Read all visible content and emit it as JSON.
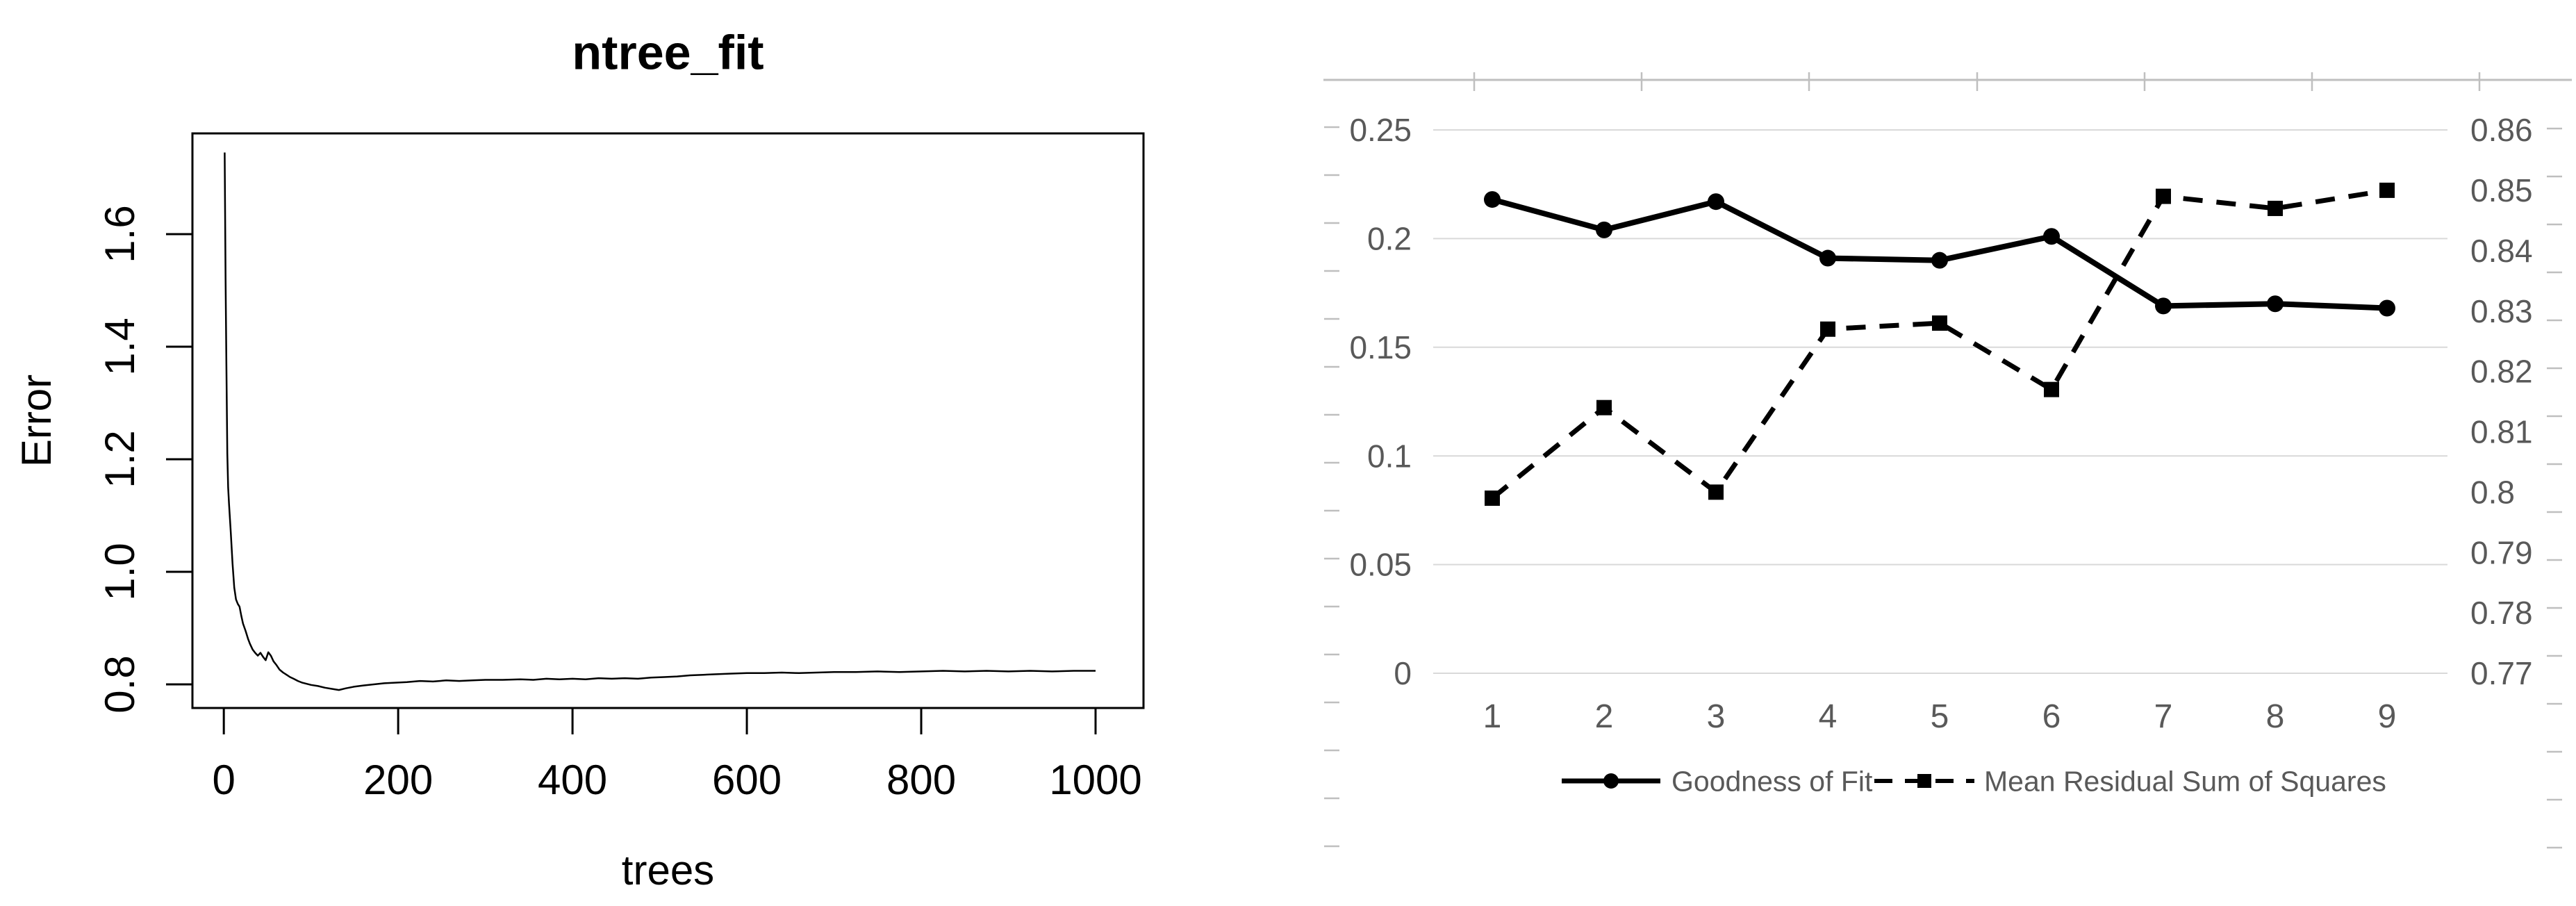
{
  "page": {
    "background": "#ffffff"
  },
  "chart_data": [
    {
      "id": "ntree-fit",
      "type": "line",
      "title": "ntree_fit",
      "xlabel": "trees",
      "ylabel": "Error",
      "x_ticks": [
        "0",
        "200",
        "400",
        "600",
        "800",
        "1000"
      ],
      "x_tick_values": [
        0,
        200,
        400,
        600,
        800,
        1000
      ],
      "y_ticks": [
        "0.8",
        "1.0",
        "1.2",
        "1.4",
        "1.6"
      ],
      "y_tick_values": [
        0.8,
        1.0,
        1.2,
        1.4,
        1.6
      ],
      "xlim": [
        -36,
        1055
      ],
      "ylim": [
        0.758,
        1.779
      ],
      "grid": false,
      "line_color": "#000000",
      "points": [
        [
          1,
          1.745
        ],
        [
          2,
          1.52
        ],
        [
          3,
          1.365
        ],
        [
          4,
          1.21
        ],
        [
          5,
          1.15
        ],
        [
          6,
          1.12
        ],
        [
          8,
          1.07
        ],
        [
          10,
          1.015
        ],
        [
          12,
          0.972
        ],
        [
          14,
          0.951
        ],
        [
          16,
          0.943
        ],
        [
          18,
          0.938
        ],
        [
          20,
          0.922
        ],
        [
          22,
          0.908
        ],
        [
          25,
          0.895
        ],
        [
          28,
          0.88
        ],
        [
          30,
          0.872
        ],
        [
          33,
          0.862
        ],
        [
          36,
          0.856
        ],
        [
          39,
          0.851
        ],
        [
          42,
          0.856
        ],
        [
          45,
          0.849
        ],
        [
          48,
          0.843
        ],
        [
          51,
          0.857
        ],
        [
          54,
          0.851
        ],
        [
          57,
          0.841
        ],
        [
          60,
          0.835
        ],
        [
          64,
          0.826
        ],
        [
          68,
          0.821
        ],
        [
          72,
          0.817
        ],
        [
          76,
          0.813
        ],
        [
          80,
          0.81
        ],
        [
          85,
          0.806
        ],
        [
          90,
          0.803
        ],
        [
          95,
          0.801
        ],
        [
          100,
          0.799
        ],
        [
          108,
          0.797
        ],
        [
          116,
          0.794
        ],
        [
          124,
          0.792
        ],
        [
          132,
          0.79
        ],
        [
          140,
          0.793
        ],
        [
          150,
          0.796
        ],
        [
          160,
          0.798
        ],
        [
          172,
          0.8
        ],
        [
          184,
          0.802
        ],
        [
          196,
          0.803
        ],
        [
          210,
          0.804
        ],
        [
          225,
          0.806
        ],
        [
          240,
          0.805
        ],
        [
          255,
          0.807
        ],
        [
          270,
          0.806
        ],
        [
          285,
          0.807
        ],
        [
          300,
          0.808
        ],
        [
          320,
          0.808
        ],
        [
          340,
          0.809
        ],
        [
          355,
          0.808
        ],
        [
          370,
          0.81
        ],
        [
          385,
          0.809
        ],
        [
          400,
          0.81
        ],
        [
          415,
          0.809
        ],
        [
          430,
          0.811
        ],
        [
          445,
          0.81
        ],
        [
          460,
          0.811
        ],
        [
          475,
          0.81
        ],
        [
          490,
          0.812
        ],
        [
          505,
          0.813
        ],
        [
          520,
          0.814
        ],
        [
          535,
          0.816
        ],
        [
          550,
          0.817
        ],
        [
          565,
          0.818
        ],
        [
          580,
          0.819
        ],
        [
          600,
          0.82
        ],
        [
          620,
          0.82
        ],
        [
          640,
          0.821
        ],
        [
          660,
          0.82
        ],
        [
          680,
          0.821
        ],
        [
          700,
          0.822
        ],
        [
          725,
          0.822
        ],
        [
          750,
          0.823
        ],
        [
          775,
          0.822
        ],
        [
          800,
          0.823
        ],
        [
          825,
          0.824
        ],
        [
          850,
          0.823
        ],
        [
          875,
          0.824
        ],
        [
          900,
          0.823
        ],
        [
          925,
          0.824
        ],
        [
          950,
          0.823
        ],
        [
          975,
          0.824
        ],
        [
          1000,
          0.824
        ]
      ]
    },
    {
      "id": "fit-comparison",
      "type": "line",
      "categories": [
        "1",
        "2",
        "3",
        "4",
        "5",
        "6",
        "7",
        "8",
        "9"
      ],
      "x_values": [
        1,
        2,
        3,
        4,
        5,
        6,
        7,
        8,
        9
      ],
      "left_axis": {
        "range": [
          0,
          0.25
        ],
        "tick_labels": [
          "0",
          "0.05",
          "0.1",
          "0.15",
          "0.2",
          "0.25"
        ],
        "tick_values": [
          0,
          0.05,
          0.1,
          0.15,
          0.2,
          0.25
        ]
      },
      "right_axis": {
        "range": [
          0.77,
          0.86
        ],
        "tick_labels": [
          "0.77",
          "0.78",
          "0.79",
          "0.8",
          "0.81",
          "0.82",
          "0.83",
          "0.84",
          "0.85",
          "0.86"
        ],
        "tick_values": [
          0.77,
          0.78,
          0.79,
          0.8,
          0.81,
          0.82,
          0.83,
          0.84,
          0.85,
          0.86
        ]
      },
      "series": [
        {
          "name": "Goodness of Fit",
          "axis": "left",
          "line_style": "solid",
          "marker": "circle",
          "color": "#000000",
          "values": [
            0.218,
            0.204,
            0.217,
            0.191,
            0.19,
            0.201,
            0.169,
            0.17,
            0.168
          ]
        },
        {
          "name": "Mean Residual Sum of Squares",
          "axis": "right",
          "line_style": "dashed",
          "marker": "square",
          "color": "#000000",
          "values": [
            0.799,
            0.814,
            0.8,
            0.827,
            0.828,
            0.817,
            0.849,
            0.847,
            0.85
          ]
        }
      ],
      "legend_position": "bottom",
      "grid": true,
      "colors": {
        "gridline": "#d9d9d9",
        "border": "#bfbfbf",
        "tick": "#bfbfbf",
        "axis_label": "#595959",
        "legend_text": "#595959"
      }
    }
  ]
}
